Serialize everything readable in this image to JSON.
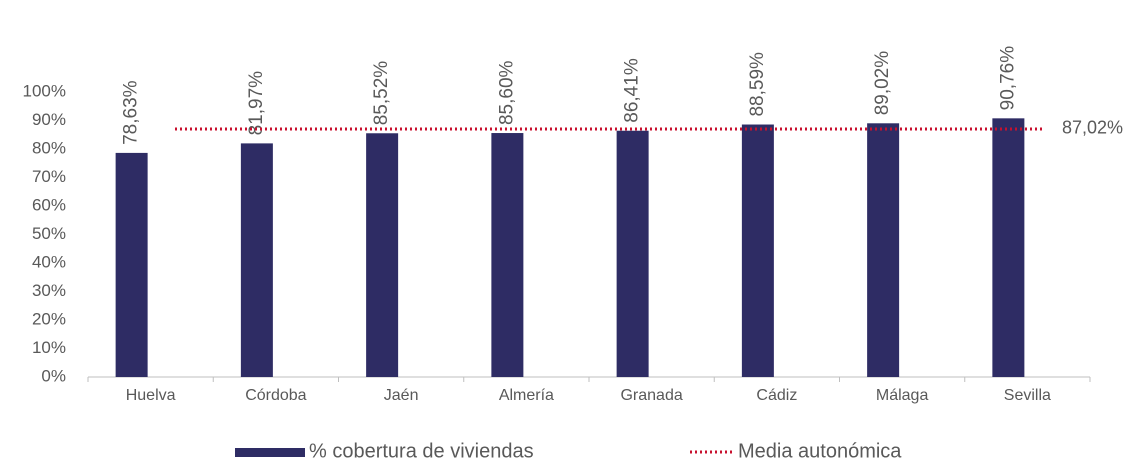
{
  "chart_data": {
    "type": "bar",
    "categories": [
      "Huelva",
      "Córdoba",
      "Jaén",
      "Almería",
      "Granada",
      "Cádiz",
      "Málaga",
      "Sevilla"
    ],
    "series": [
      {
        "name": "% cobertura de viviendas",
        "color": "#2e2c64",
        "values": [
          78.63,
          81.97,
          85.52,
          85.6,
          86.41,
          88.59,
          89.02,
          90.76
        ],
        "value_labels": [
          "78,63%",
          "81,97%",
          "85,52%",
          "85,60%",
          "86,41%",
          "88,59%",
          "89,02%",
          "90,76%"
        ]
      }
    ],
    "reference_lines": [
      {
        "name": "Media autonómica",
        "value": 87.02,
        "value_label": "87,02%",
        "color": "#c8102e"
      }
    ],
    "ylim": [
      0,
      100
    ],
    "yticks": [
      {
        "value": 0,
        "label": "0%"
      },
      {
        "value": 10,
        "label": "10%"
      },
      {
        "value": 20,
        "label": "20%"
      },
      {
        "value": 30,
        "label": "30%"
      },
      {
        "value": 40,
        "label": "40%"
      },
      {
        "value": 50,
        "label": "50%"
      },
      {
        "value": 60,
        "label": "60%"
      },
      {
        "value": 70,
        "label": "70%"
      },
      {
        "value": 80,
        "label": "80%"
      },
      {
        "value": 90,
        "label": "90%"
      },
      {
        "value": 100,
        "label": "100%"
      }
    ],
    "grid": false,
    "legend": "bottom"
  }
}
